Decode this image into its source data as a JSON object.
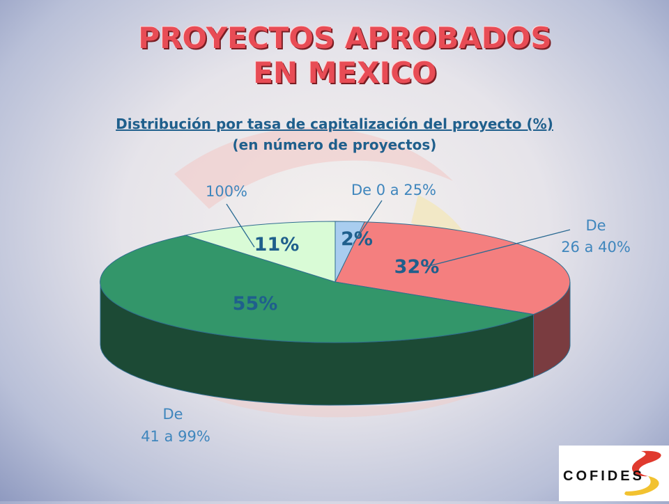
{
  "title_line1": "PROYECTOS APROBADOS",
  "title_line2": "EN MEXICO",
  "subtitle_line1": "Distribución por tasa de capitalización del proyecto (%)",
  "subtitle_line2": "(en número de proyectos)",
  "logo_text": "COFIDES",
  "colors": {
    "title": "#e84c55",
    "text_blue": "#1f5f8c",
    "label_blue": "#3f86bd"
  },
  "chart_data": {
    "type": "pie",
    "three_d": true,
    "slices": [
      {
        "label": "De 0 a 25%",
        "value": 2,
        "value_label": "2%",
        "color": "#a9cdef",
        "side_color": "#7d9ec0"
      },
      {
        "label": "De 26 a 40%",
        "value": 32,
        "value_label": "32%",
        "color": "#f47f7f",
        "side_color": "#7a3c40"
      },
      {
        "label": "De 41 a 99%",
        "value": 55,
        "value_label": "55%",
        "color": "#33966a",
        "side_color": "#1c4a35"
      },
      {
        "label": "100%",
        "value": 11,
        "value_label": "11%",
        "color": "#d9fbd6",
        "side_color": "#a9c8a6"
      }
    ]
  }
}
